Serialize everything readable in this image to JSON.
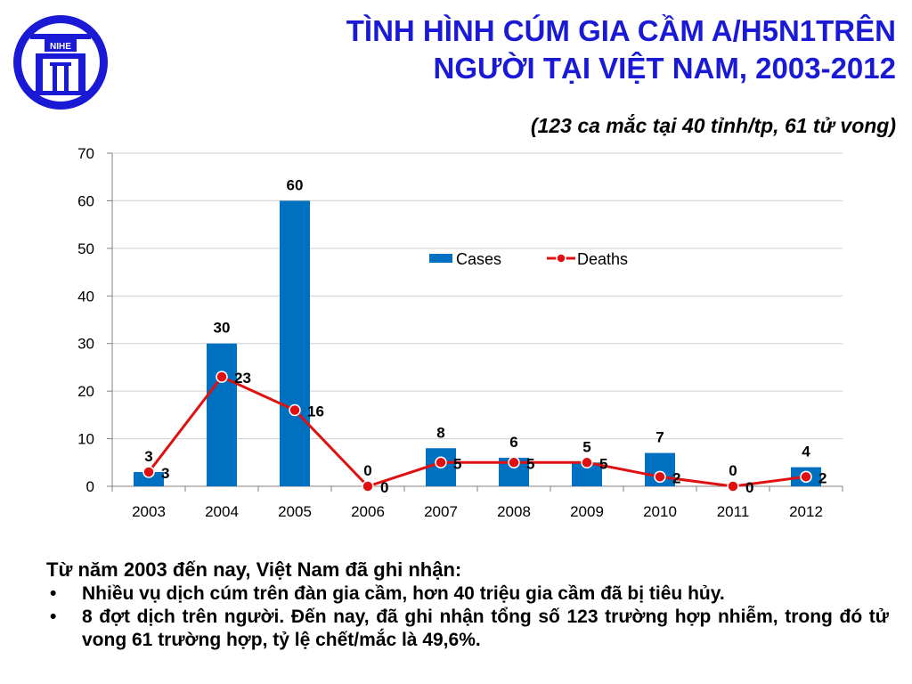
{
  "logo": {
    "text": "NIHE",
    "color": "#1a1ad6"
  },
  "header": {
    "title_line1": "TÌNH HÌNH CÚM GIA CẦM A/H5N1TRÊN",
    "title_line2": "NGƯỜI TẠI VIỆT NAM, 2003-2012",
    "subtitle": "(123  ca mắc tại 40 tỉnh/tp, 61 tử vong)"
  },
  "chart_data": {
    "type": "bar",
    "categories": [
      "2003",
      "2004",
      "2005",
      "2006",
      "2007",
      "2008",
      "2009",
      "2010",
      "2011",
      "2012"
    ],
    "ylim": [
      0,
      70
    ],
    "yticks": [
      0,
      10,
      20,
      30,
      40,
      50,
      60,
      70
    ],
    "grid": true,
    "legend_position": "top-right",
    "series": [
      {
        "name": "Cases",
        "type": "bar",
        "color": "#0070c0",
        "values": [
          3,
          30,
          60,
          0,
          8,
          6,
          5,
          7,
          0,
          4
        ]
      },
      {
        "name": "Deaths",
        "type": "line",
        "color": "#e01010",
        "values": [
          3,
          23,
          16,
          0,
          5,
          5,
          5,
          2,
          0,
          2
        ]
      }
    ]
  },
  "notes": {
    "intro": "Từ năm 2003 đến nay, Việt Nam đã ghi nhận:",
    "bullets": [
      "Nhiều vụ dịch cúm trên đàn gia cầm, hơn 40 triệu gia cầm đã bị tiêu hủy.",
      "8 đợt dịch trên người. Đến nay, đã ghi nhận tổng số 123 trường hợp nhiễm, trong đó tử vong 61 trường hợp, tỷ lệ chết/mắc là 49,6%."
    ]
  }
}
